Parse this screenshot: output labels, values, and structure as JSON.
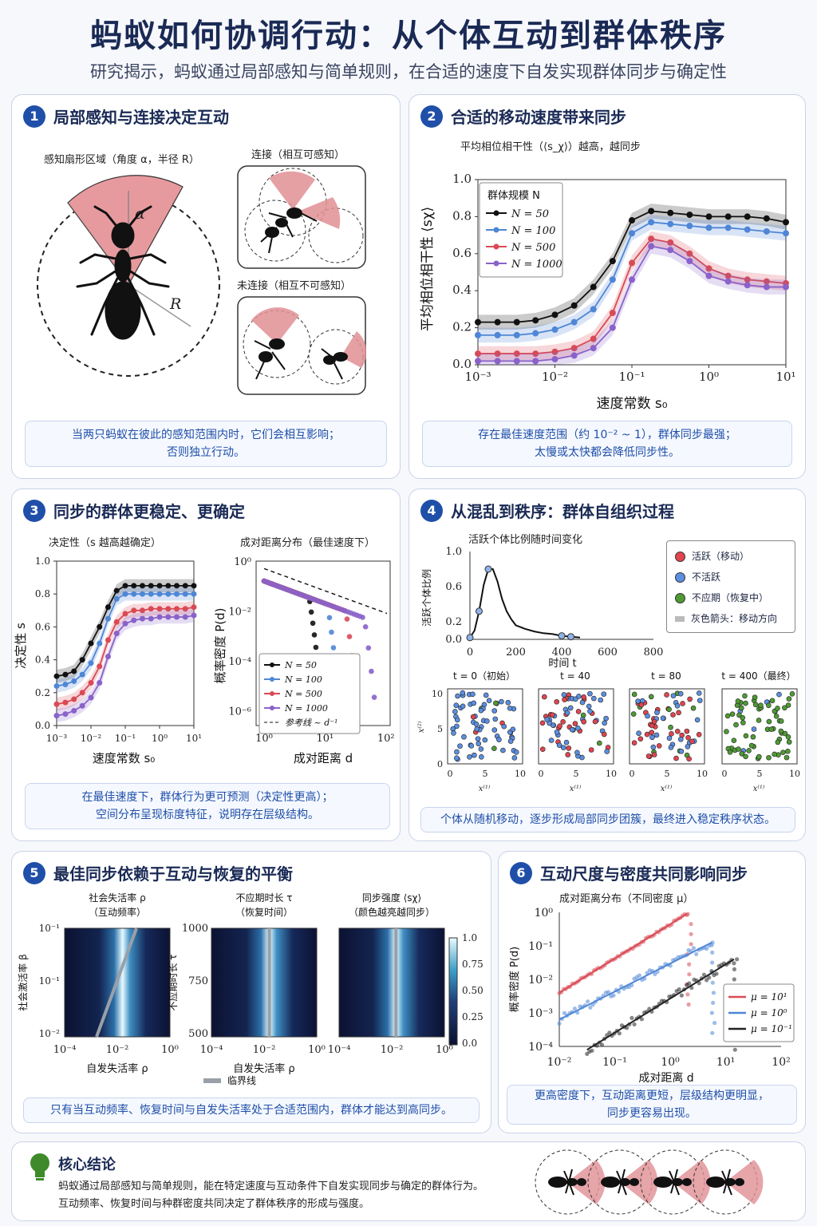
{
  "header": {
    "title": "蚂蚁如何协调行动：从个体互动到群体秩序",
    "subtitle": "研究揭示，蚂蚁通过局部感知与简单规则，在合适的速度下自发实现群体同步与确定性"
  },
  "p1": {
    "num": "1",
    "title": "局部感知与连接决定互动",
    "sector_label": "感知扇形区域（角度 α，半径 R）",
    "alpha": "α",
    "radius": "R",
    "conn_label": "连接（相互可感知）",
    "notconn_label": "未连接（相互不可感知）",
    "caption": "当两只蚂蚁在彼此的感知范围内时，它们会相互影响；\n否则独立行动。"
  },
  "p2": {
    "num": "2",
    "title": "合适的移动速度带来同步",
    "subtitle": "平均相位相干性（⟨s_χ⟩）越高，越同步",
    "ylabel": "平均相位相干性 ⟨sχ⟩",
    "xlabel": "速度常数 s₀",
    "legend_title": "群体规模 N",
    "yticks": [
      "0.0",
      "0.2",
      "0.4",
      "0.6",
      "0.8",
      "1.0"
    ],
    "xticks": [
      "10⁻³",
      "10⁻²",
      "10⁻¹",
      "10⁰",
      "10¹"
    ],
    "caption": "存在最佳速度范围（约 10⁻² ~ 1），群体同步最强；\n太慢或太快都会降低同步性。"
  },
  "p3": {
    "num": "3",
    "title": "同步的群体更稳定、更确定",
    "left_title": "决定性（s 越高越确定）",
    "left_ylabel": "决定性 s",
    "left_xlabel": "速度常数 s₀",
    "left_yticks": [
      "0.0",
      "0.2",
      "0.4",
      "0.6",
      "0.8",
      "1.0"
    ],
    "left_xticks": [
      "10⁻³",
      "10⁻²",
      "10⁻¹",
      "10⁰",
      "10¹"
    ],
    "right_title": "成对距离分布（最佳速度下）",
    "right_ylabel": "概率密度 P(d)",
    "right_xlabel": "成对距离 d",
    "right_yticks": [
      "10⁰",
      "10⁻²",
      "10⁻⁴",
      "10⁻⁶"
    ],
    "right_xticks": [
      "10⁰",
      "10¹",
      "10²"
    ],
    "ref_label": "参考线 ~ d⁻¹",
    "caption": "在最佳速度下，群体行为更可预测（决定性更高）；\n空间分布呈现标度特征，说明存在层级结构。"
  },
  "p4": {
    "num": "4",
    "title": "从混乱到秩序：群体自组织过程",
    "plot_title": "活跃个体比例随时间变化",
    "ylabel": "活跃个体比例",
    "xlabel": "时间 t",
    "yticks": [
      "0.0",
      "0.2",
      "0.6",
      "1.0"
    ],
    "xticks": [
      "0",
      "200",
      "400",
      "600",
      "800"
    ],
    "legend": [
      "活跃（移动）",
      "不活跃",
      "不应期（恢复中）",
      "灰色箭头：移动方向"
    ],
    "snap_titles": [
      "t = 0（初始）",
      "t = 40",
      "t = 80",
      "t = 400（最终）"
    ],
    "snap_ticks": [
      "0",
      "5",
      "10"
    ],
    "snap_xlabel": "x⁽¹⁾",
    "snap_ylabel": "x⁽²⁾",
    "caption": "个体从随机移动，逐步形成局部同步团簇，最终进入稳定秩序状态。"
  },
  "p5": {
    "num": "5",
    "title": "最佳同步依赖于互动与恢复的平衡",
    "h1_title": "社会失活率 ρ\n（互动频率）",
    "h2_title": "不应期时长 τ\n（恢复时间）",
    "h3_title": "同步强度 ⟨sχ⟩\n（颜色越亮越同步）",
    "h1_ylabel": "社会激活率 β",
    "h2_ylabel": "不应期时长 τ",
    "xlabel": "自发失活率 ρ",
    "h1_yticks": [
      "10⁻¹",
      "10⁻¹",
      "10⁻²"
    ],
    "h2_yticks": [
      "1000",
      "750",
      "500"
    ],
    "xticks": [
      "10⁻⁴",
      "10⁻²",
      "10⁰"
    ],
    "cbar_ticks": [
      "1.0",
      "0.75",
      "0.50",
      "0.25",
      "0.0"
    ],
    "crit_label": "临界线",
    "caption": "只有当互动频率、恢复时间与自发失活率处于合适范围内，群体才能达到高同步。"
  },
  "p6": {
    "num": "6",
    "title": "互动尺度与密度共同影响同步",
    "plot_title": "成对距离分布（不同密度 μ）",
    "ylabel": "概率密度 P(d)",
    "xlabel": "成对距离 d",
    "yticks": [
      "10⁰",
      "10⁻¹",
      "10⁻²",
      "10⁻³",
      "10⁻⁴"
    ],
    "xticks": [
      "10⁻²",
      "10⁻¹",
      "10⁰",
      "10¹",
      "10²"
    ],
    "legend": [
      "μ = 10¹",
      "μ = 10⁰",
      "μ = 10⁻¹"
    ],
    "caption": "更高密度下，互动距离更短，层级结构更明显，\n同步更容易出现。"
  },
  "conclusion": {
    "title": "核心结论",
    "text1": "蚂蚁通过局部感知与简单规则，能在特定速度与互动条件下自发实现同步与确定的群体行为。",
    "text2": "互动频率、恢复时间与种群密度共同决定了群体秩序的形成与强度。"
  },
  "colors": {
    "navy": "#1a2a55",
    "blue": "#1f4fa8",
    "black_series": "#111111",
    "blue_series": "#4f86d6",
    "red_series": "#d94a55",
    "purple_series": "#8a62c9",
    "green": "#3f8a2a"
  },
  "chart_data": [
    {
      "type": "line",
      "title": "平均相位相干性（⟨s_χ⟩）越高，越同步",
      "xlabel": "速度常数 s₀",
      "ylabel": "平均相位相干性 ⟨sχ⟩",
      "xscale": "log",
      "ylim": [
        0,
        1
      ],
      "x": [
        0.001,
        0.0018,
        0.0032,
        0.0056,
        0.01,
        0.0178,
        0.0316,
        0.0562,
        0.1,
        0.178,
        0.316,
        0.562,
        1,
        1.78,
        3.16,
        5.62,
        10
      ],
      "series": [
        {
          "name": "N = 50",
          "values": [
            0.23,
            0.23,
            0.23,
            0.24,
            0.27,
            0.32,
            0.42,
            0.56,
            0.78,
            0.83,
            0.82,
            0.81,
            0.8,
            0.8,
            0.8,
            0.79,
            0.77
          ]
        },
        {
          "name": "N = 100",
          "values": [
            0.16,
            0.16,
            0.16,
            0.17,
            0.19,
            0.23,
            0.3,
            0.46,
            0.71,
            0.77,
            0.76,
            0.75,
            0.74,
            0.74,
            0.73,
            0.72,
            0.71
          ]
        },
        {
          "name": "N = 500",
          "values": [
            0.06,
            0.06,
            0.06,
            0.06,
            0.07,
            0.09,
            0.14,
            0.28,
            0.55,
            0.68,
            0.66,
            0.6,
            0.52,
            0.48,
            0.46,
            0.45,
            0.44
          ]
        },
        {
          "name": "N = 1000",
          "values": [
            0.02,
            0.02,
            0.02,
            0.02,
            0.03,
            0.05,
            0.09,
            0.2,
            0.46,
            0.64,
            0.62,
            0.56,
            0.48,
            0.45,
            0.43,
            0.42,
            0.42
          ]
        }
      ]
    },
    {
      "type": "line",
      "title": "决定性（s 越高越确定）",
      "xlabel": "速度常数 s₀",
      "ylabel": "决定性 s",
      "xscale": "log",
      "ylim": [
        0,
        1
      ],
      "x": [
        0.001,
        0.0018,
        0.0032,
        0.0056,
        0.01,
        0.0178,
        0.0316,
        0.0562,
        0.1,
        0.178,
        0.316,
        0.562,
        1,
        1.78,
        3.16,
        5.62,
        10
      ],
      "series": [
        {
          "name": "N = 50",
          "values": [
            0.3,
            0.31,
            0.33,
            0.4,
            0.5,
            0.6,
            0.72,
            0.82,
            0.85,
            0.85,
            0.85,
            0.85,
            0.85,
            0.85,
            0.85,
            0.85,
            0.85
          ]
        },
        {
          "name": "N = 100",
          "values": [
            0.24,
            0.25,
            0.27,
            0.31,
            0.38,
            0.5,
            0.65,
            0.77,
            0.8,
            0.8,
            0.8,
            0.8,
            0.8,
            0.8,
            0.8,
            0.8,
            0.8
          ]
        },
        {
          "name": "N = 500",
          "values": [
            0.13,
            0.14,
            0.16,
            0.2,
            0.26,
            0.36,
            0.52,
            0.63,
            0.68,
            0.7,
            0.7,
            0.71,
            0.71,
            0.71,
            0.71,
            0.71,
            0.72
          ]
        },
        {
          "name": "N = 1000",
          "values": [
            0.06,
            0.07,
            0.09,
            0.12,
            0.17,
            0.26,
            0.42,
            0.56,
            0.62,
            0.64,
            0.65,
            0.65,
            0.66,
            0.66,
            0.66,
            0.66,
            0.67
          ]
        }
      ]
    },
    {
      "type": "scatter",
      "title": "成对距离分布（最佳速度下）",
      "xlabel": "成对距离 d",
      "ylabel": "概率密度 P(d)",
      "xscale": "log",
      "yscale": "log",
      "series": [
        {
          "name": "N = 50",
          "cut": 10
        },
        {
          "name": "N = 100",
          "cut": 20
        },
        {
          "name": "N = 500",
          "cut": 40
        },
        {
          "name": "N = 1000",
          "cut": 80
        },
        {
          "name": "参考线 ~ d⁻¹"
        }
      ]
    },
    {
      "type": "line",
      "title": "活跃个体比例随时间变化",
      "xlabel": "时间 t",
      "ylabel": "活跃个体比例",
      "xlim": [
        0,
        800
      ],
      "ylim": [
        0,
        1
      ],
      "x": [
        0,
        20,
        40,
        60,
        80,
        100,
        120,
        140,
        160,
        180,
        200,
        240,
        280,
        320,
        360,
        400,
        440,
        480
      ],
      "values": [
        0.02,
        0.1,
        0.32,
        0.62,
        0.8,
        0.8,
        0.66,
        0.46,
        0.32,
        0.23,
        0.16,
        0.12,
        0.09,
        0.07,
        0.06,
        0.04,
        0.03,
        0.02
      ]
    },
    {
      "type": "heatmap",
      "title": "社会失活率 ρ（互动频率）",
      "xlabel": "自发失活率 ρ",
      "ylabel": "社会激活率 β"
    },
    {
      "type": "heatmap",
      "title": "不应期时长 τ（恢复时间）",
      "xlabel": "自发失活率 ρ",
      "ylabel": "不应期时长 τ"
    },
    {
      "type": "heatmap",
      "title": "同步强度 ⟨sχ⟩（颜色越亮越同步）",
      "xlabel": "自发失活率 ρ"
    },
    {
      "type": "scatter",
      "title": "成对距离分布（不同密度 μ）",
      "xlabel": "成对距离 d",
      "ylabel": "概率密度 P(d)",
      "xscale": "log",
      "yscale": "log",
      "series": [
        {
          "name": "μ = 10¹"
        },
        {
          "name": "μ = 10⁰"
        },
        {
          "name": "μ = 10⁻¹"
        }
      ]
    }
  ]
}
